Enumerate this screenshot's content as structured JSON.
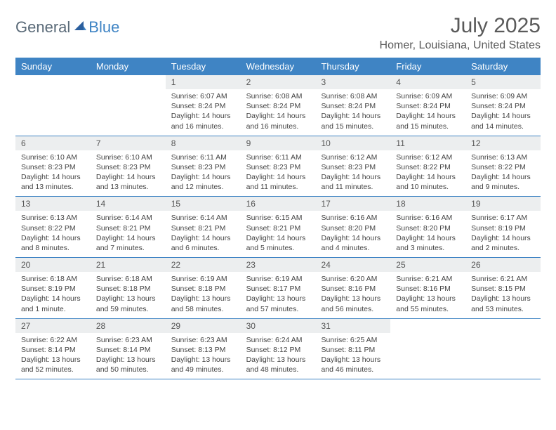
{
  "logo": {
    "text1": "General",
    "text2": "Blue"
  },
  "title": "July 2025",
  "location": "Homer, Louisiana, United States",
  "colors": {
    "header_bg": "#3f84c4",
    "date_bar_bg": "#eceeef",
    "text_gray": "#5a5a5a",
    "border": "#3f84c4"
  },
  "dayNames": [
    "Sunday",
    "Monday",
    "Tuesday",
    "Wednesday",
    "Thursday",
    "Friday",
    "Saturday"
  ],
  "weeks": [
    [
      null,
      null,
      {
        "d": "1",
        "sr": "6:07 AM",
        "ss": "8:24 PM",
        "dl": "14 hours and 16 minutes."
      },
      {
        "d": "2",
        "sr": "6:08 AM",
        "ss": "8:24 PM",
        "dl": "14 hours and 16 minutes."
      },
      {
        "d": "3",
        "sr": "6:08 AM",
        "ss": "8:24 PM",
        "dl": "14 hours and 15 minutes."
      },
      {
        "d": "4",
        "sr": "6:09 AM",
        "ss": "8:24 PM",
        "dl": "14 hours and 15 minutes."
      },
      {
        "d": "5",
        "sr": "6:09 AM",
        "ss": "8:24 PM",
        "dl": "14 hours and 14 minutes."
      }
    ],
    [
      {
        "d": "6",
        "sr": "6:10 AM",
        "ss": "8:23 PM",
        "dl": "14 hours and 13 minutes."
      },
      {
        "d": "7",
        "sr": "6:10 AM",
        "ss": "8:23 PM",
        "dl": "14 hours and 13 minutes."
      },
      {
        "d": "8",
        "sr": "6:11 AM",
        "ss": "8:23 PM",
        "dl": "14 hours and 12 minutes."
      },
      {
        "d": "9",
        "sr": "6:11 AM",
        "ss": "8:23 PM",
        "dl": "14 hours and 11 minutes."
      },
      {
        "d": "10",
        "sr": "6:12 AM",
        "ss": "8:23 PM",
        "dl": "14 hours and 11 minutes."
      },
      {
        "d": "11",
        "sr": "6:12 AM",
        "ss": "8:22 PM",
        "dl": "14 hours and 10 minutes."
      },
      {
        "d": "12",
        "sr": "6:13 AM",
        "ss": "8:22 PM",
        "dl": "14 hours and 9 minutes."
      }
    ],
    [
      {
        "d": "13",
        "sr": "6:13 AM",
        "ss": "8:22 PM",
        "dl": "14 hours and 8 minutes."
      },
      {
        "d": "14",
        "sr": "6:14 AM",
        "ss": "8:21 PM",
        "dl": "14 hours and 7 minutes."
      },
      {
        "d": "15",
        "sr": "6:14 AM",
        "ss": "8:21 PM",
        "dl": "14 hours and 6 minutes."
      },
      {
        "d": "16",
        "sr": "6:15 AM",
        "ss": "8:21 PM",
        "dl": "14 hours and 5 minutes."
      },
      {
        "d": "17",
        "sr": "6:16 AM",
        "ss": "8:20 PM",
        "dl": "14 hours and 4 minutes."
      },
      {
        "d": "18",
        "sr": "6:16 AM",
        "ss": "8:20 PM",
        "dl": "14 hours and 3 minutes."
      },
      {
        "d": "19",
        "sr": "6:17 AM",
        "ss": "8:19 PM",
        "dl": "14 hours and 2 minutes."
      }
    ],
    [
      {
        "d": "20",
        "sr": "6:18 AM",
        "ss": "8:19 PM",
        "dl": "14 hours and 1 minute."
      },
      {
        "d": "21",
        "sr": "6:18 AM",
        "ss": "8:18 PM",
        "dl": "13 hours and 59 minutes."
      },
      {
        "d": "22",
        "sr": "6:19 AM",
        "ss": "8:18 PM",
        "dl": "13 hours and 58 minutes."
      },
      {
        "d": "23",
        "sr": "6:19 AM",
        "ss": "8:17 PM",
        "dl": "13 hours and 57 minutes."
      },
      {
        "d": "24",
        "sr": "6:20 AM",
        "ss": "8:16 PM",
        "dl": "13 hours and 56 minutes."
      },
      {
        "d": "25",
        "sr": "6:21 AM",
        "ss": "8:16 PM",
        "dl": "13 hours and 55 minutes."
      },
      {
        "d": "26",
        "sr": "6:21 AM",
        "ss": "8:15 PM",
        "dl": "13 hours and 53 minutes."
      }
    ],
    [
      {
        "d": "27",
        "sr": "6:22 AM",
        "ss": "8:14 PM",
        "dl": "13 hours and 52 minutes."
      },
      {
        "d": "28",
        "sr": "6:23 AM",
        "ss": "8:14 PM",
        "dl": "13 hours and 50 minutes."
      },
      {
        "d": "29",
        "sr": "6:23 AM",
        "ss": "8:13 PM",
        "dl": "13 hours and 49 minutes."
      },
      {
        "d": "30",
        "sr": "6:24 AM",
        "ss": "8:12 PM",
        "dl": "13 hours and 48 minutes."
      },
      {
        "d": "31",
        "sr": "6:25 AM",
        "ss": "8:11 PM",
        "dl": "13 hours and 46 minutes."
      },
      null,
      null
    ]
  ],
  "labels": {
    "sunrise": "Sunrise:",
    "sunset": "Sunset:",
    "daylight": "Daylight:"
  }
}
